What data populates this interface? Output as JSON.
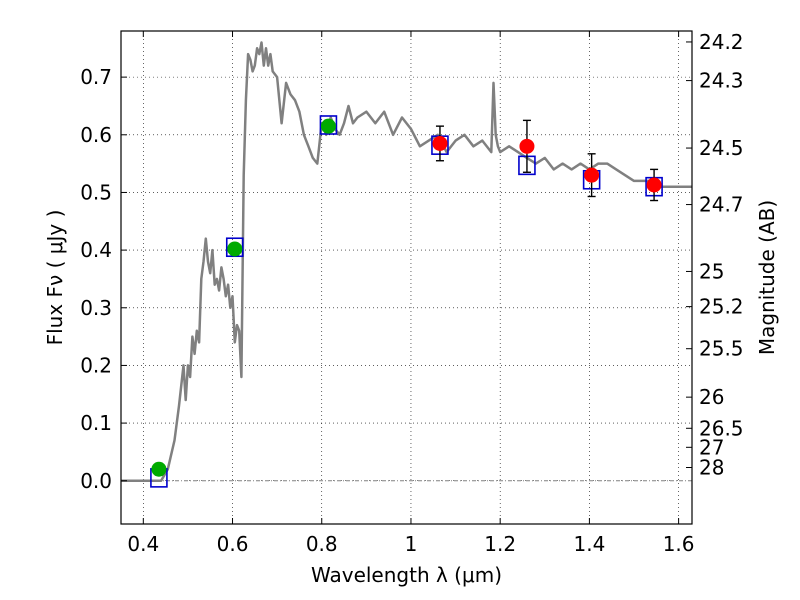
{
  "chart_data": {
    "type": "scatter",
    "title": "",
    "xlabel": "Wavelength  λ (μm)",
    "ylabel": "Flux  Fν  ( μJy )",
    "ylabel_right": "Magnitude (AB)",
    "xlim": [
      0.35,
      1.63
    ],
    "ylim": [
      -0.075,
      0.78
    ],
    "grid": true,
    "x_ticks": [
      0.4,
      0.6,
      0.8,
      1.0,
      1.2,
      1.4,
      1.6
    ],
    "x_tick_labels": [
      "0.4",
      "0.6",
      "0.8",
      "1",
      "1.2",
      "1.4",
      "1.6"
    ],
    "y_ticks": [
      0.0,
      0.1,
      0.2,
      0.3,
      0.4,
      0.5,
      0.6,
      0.7
    ],
    "y_tick_labels": [
      "0.0",
      "0.1",
      "0.2",
      "0.3",
      "0.4",
      "0.5",
      "0.6",
      "0.7"
    ],
    "right_ticks": [
      {
        "label": "24.2",
        "flux": 0.761
      },
      {
        "label": "24.3",
        "flux": 0.694
      },
      {
        "label": "24.5",
        "flux": 0.577
      },
      {
        "label": "24.7",
        "flux": 0.479
      },
      {
        "label": "25",
        "flux": 0.363
      },
      {
        "label": "25.2",
        "flux": 0.302
      },
      {
        "label": "25.5",
        "flux": 0.229
      },
      {
        "label": "26",
        "flux": 0.145
      },
      {
        "label": "26.5",
        "flux": 0.091
      },
      {
        "label": "27",
        "flux": 0.058
      },
      {
        "label": "28",
        "flux": 0.023
      }
    ],
    "series": [
      {
        "kind": "line",
        "color": "#808080",
        "x": [
          0.35,
          0.44,
          0.455,
          0.47,
          0.48,
          0.49,
          0.495,
          0.5,
          0.505,
          0.51,
          0.515,
          0.52,
          0.525,
          0.53,
          0.535,
          0.54,
          0.545,
          0.55,
          0.555,
          0.56,
          0.565,
          0.57,
          0.575,
          0.58,
          0.585,
          0.59,
          0.595,
          0.6,
          0.605,
          0.61,
          0.615,
          0.62,
          0.625,
          0.63,
          0.635,
          0.64,
          0.645,
          0.65,
          0.655,
          0.66,
          0.665,
          0.67,
          0.675,
          0.68,
          0.685,
          0.69,
          0.7,
          0.71,
          0.72,
          0.73,
          0.74,
          0.75,
          0.76,
          0.77,
          0.78,
          0.79,
          0.8,
          0.81,
          0.82,
          0.83,
          0.84,
          0.85,
          0.86,
          0.87,
          0.88,
          0.9,
          0.92,
          0.94,
          0.96,
          0.98,
          1.0,
          1.02,
          1.04,
          1.06,
          1.08,
          1.1,
          1.12,
          1.14,
          1.16,
          1.18,
          1.185,
          1.19,
          1.195,
          1.2,
          1.22,
          1.24,
          1.26,
          1.28,
          1.3,
          1.32,
          1.34,
          1.36,
          1.38,
          1.4,
          1.42,
          1.44,
          1.46,
          1.48,
          1.5,
          1.52,
          1.54,
          1.56,
          1.58,
          1.6,
          1.63
        ],
        "y": [
          0.0,
          0.0,
          0.02,
          0.07,
          0.13,
          0.2,
          0.14,
          0.2,
          0.18,
          0.25,
          0.22,
          0.26,
          0.24,
          0.35,
          0.38,
          0.42,
          0.38,
          0.36,
          0.4,
          0.34,
          0.35,
          0.33,
          0.37,
          0.35,
          0.32,
          0.34,
          0.3,
          0.32,
          0.24,
          0.27,
          0.26,
          0.18,
          0.53,
          0.66,
          0.74,
          0.73,
          0.71,
          0.72,
          0.75,
          0.74,
          0.76,
          0.72,
          0.75,
          0.72,
          0.74,
          0.71,
          0.7,
          0.62,
          0.69,
          0.67,
          0.66,
          0.64,
          0.6,
          0.58,
          0.56,
          0.55,
          0.62,
          0.6,
          0.63,
          0.61,
          0.6,
          0.62,
          0.65,
          0.62,
          0.63,
          0.64,
          0.62,
          0.64,
          0.6,
          0.63,
          0.61,
          0.58,
          0.59,
          0.6,
          0.57,
          0.59,
          0.6,
          0.58,
          0.59,
          0.57,
          0.69,
          0.6,
          0.58,
          0.57,
          0.58,
          0.57,
          0.56,
          0.55,
          0.56,
          0.54,
          0.55,
          0.54,
          0.55,
          0.54,
          0.55,
          0.55,
          0.54,
          0.53,
          0.52,
          0.52,
          0.52,
          0.51,
          0.51,
          0.51,
          0.51
        ]
      },
      {
        "kind": "squares",
        "color": "#0000cc",
        "x": [
          0.435,
          0.605,
          0.815,
          1.065,
          1.26,
          1.405,
          1.545
        ],
        "y": [
          0.005,
          0.405,
          0.617,
          0.582,
          0.547,
          0.522,
          0.51
        ]
      },
      {
        "kind": "points",
        "color": "#00aa00",
        "x": [
          0.435,
          0.605,
          0.815
        ],
        "y": [
          0.02,
          0.402,
          0.615
        ],
        "err": [
          0.01,
          0.01,
          0.01
        ]
      },
      {
        "kind": "points",
        "color": "#ff0000",
        "x": [
          1.065,
          1.26,
          1.405,
          1.545
        ],
        "y": [
          0.585,
          0.58,
          0.53,
          0.513
        ],
        "err": [
          0.03,
          0.045,
          0.037,
          0.027
        ]
      }
    ]
  }
}
